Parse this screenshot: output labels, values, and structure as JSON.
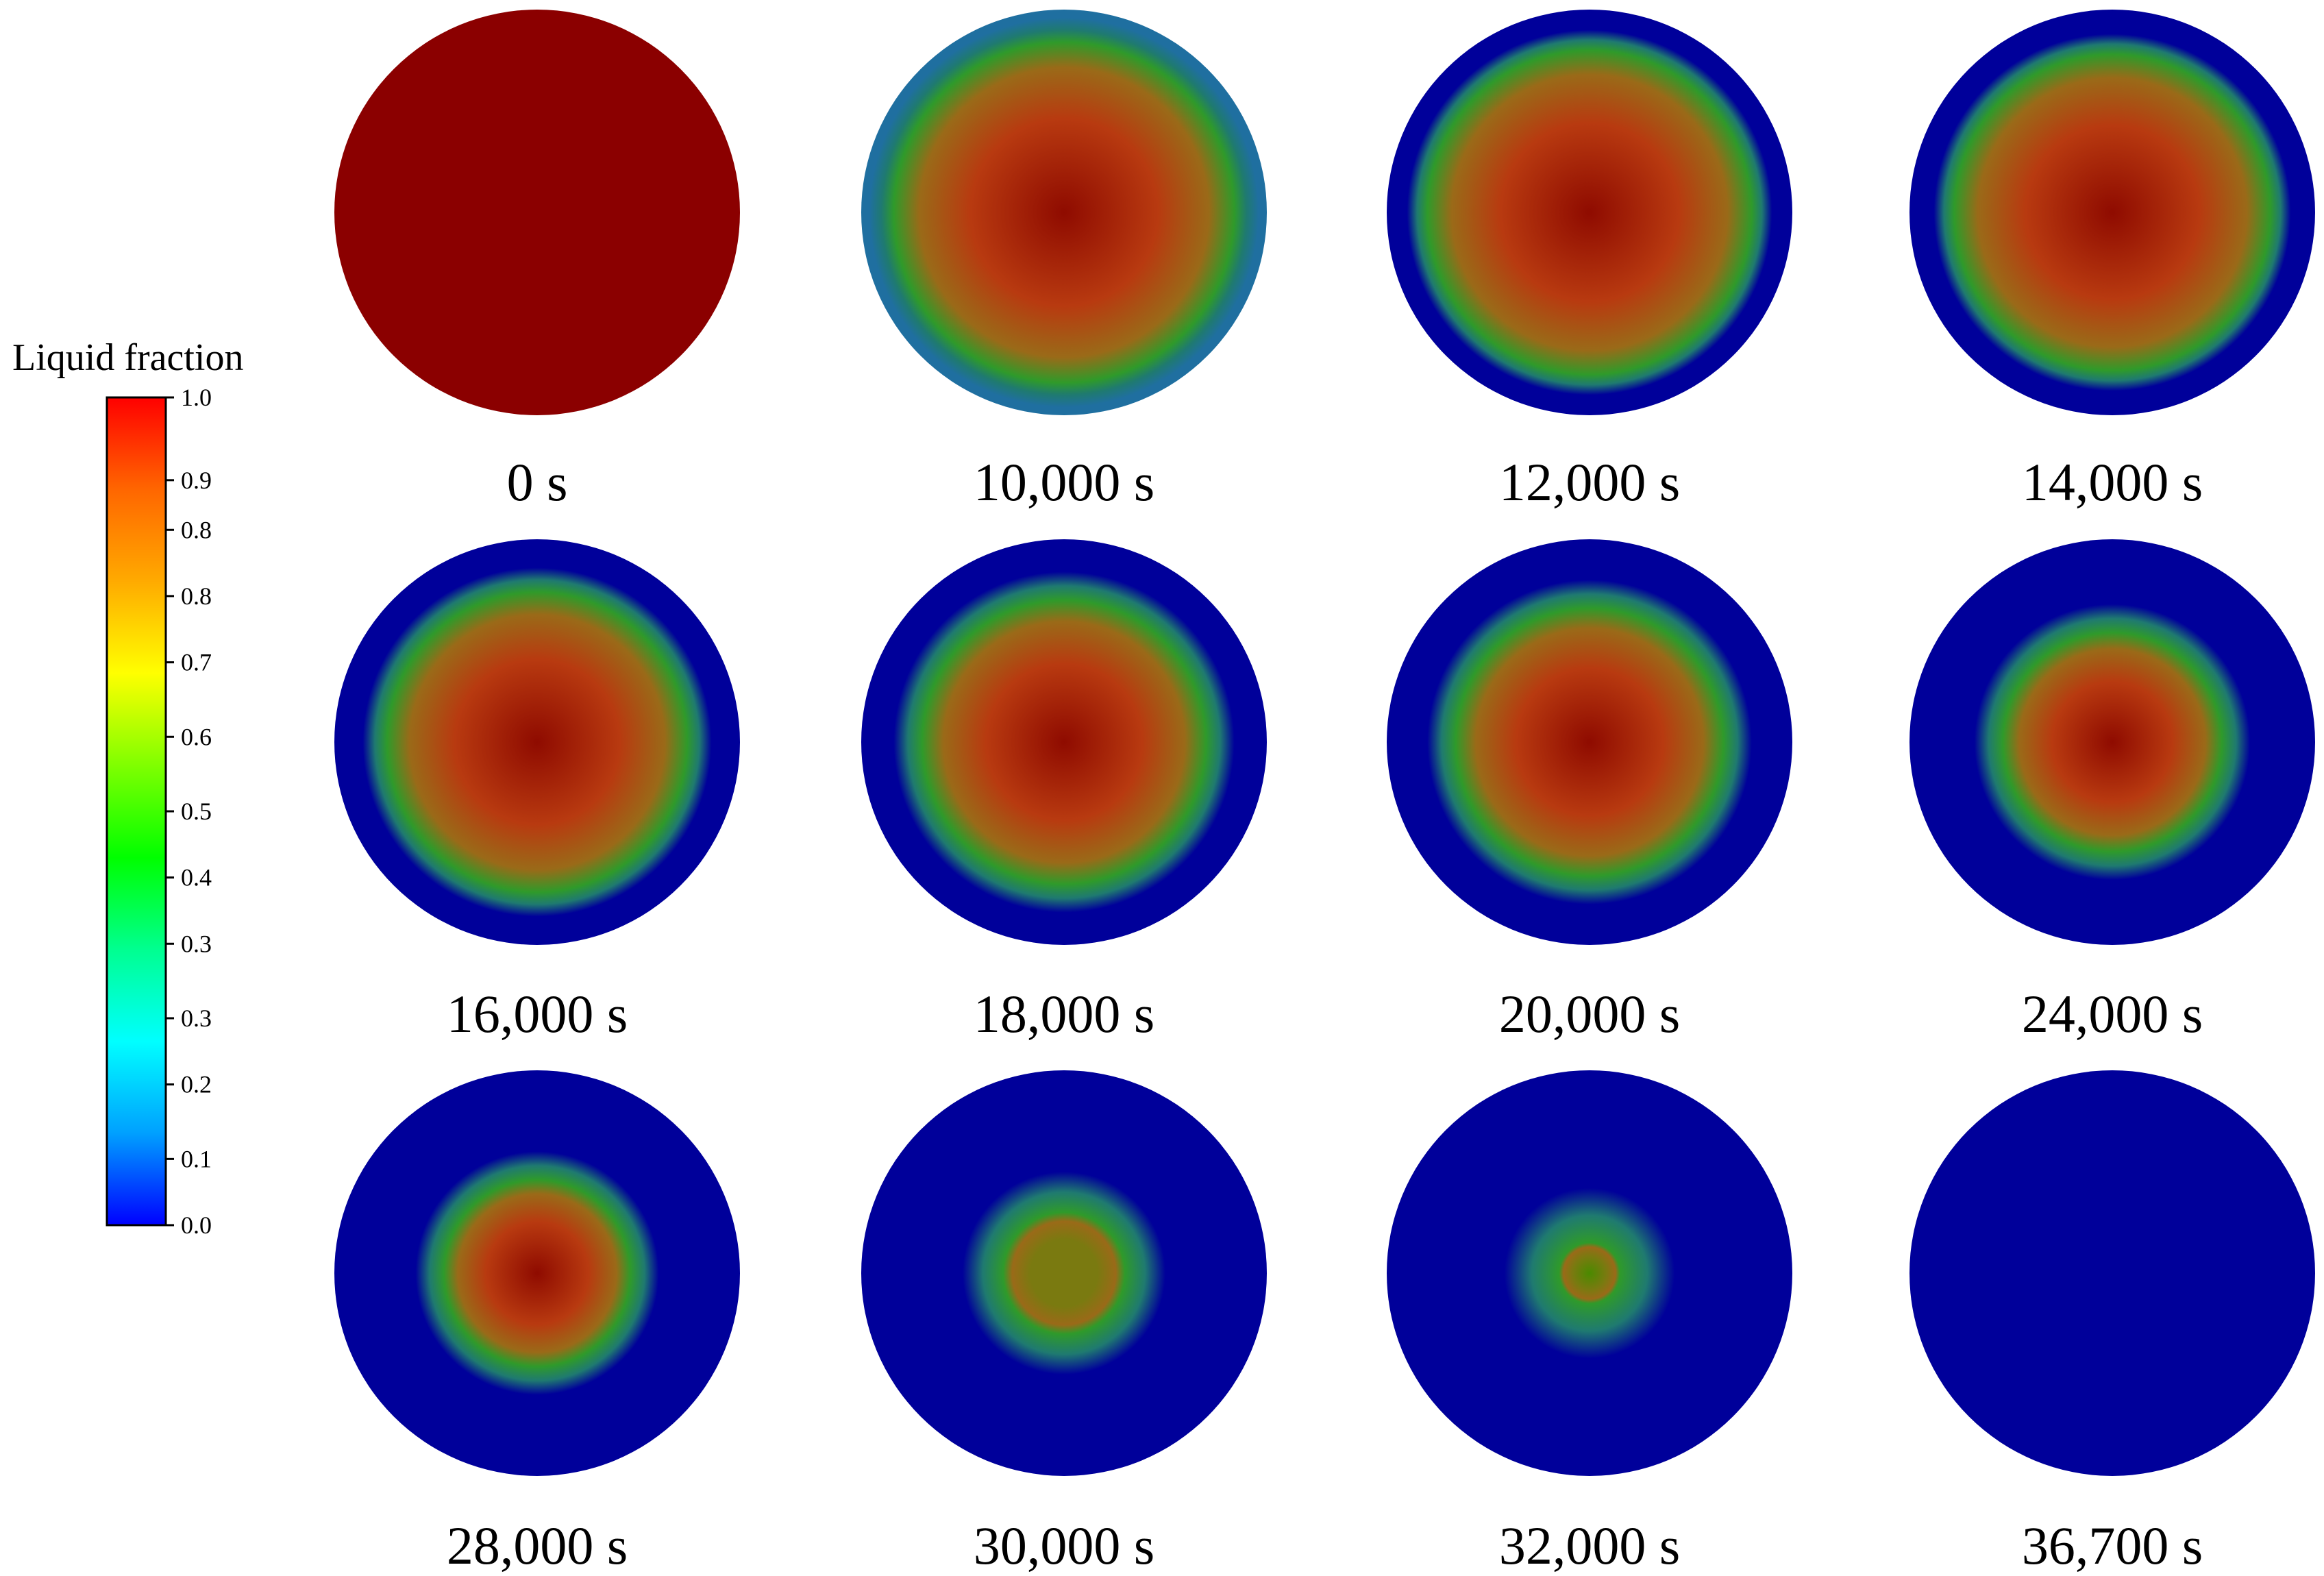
{
  "legend": {
    "title": "Liquid fraction",
    "ticks": [
      {
        "label": "1.0",
        "value": 1.0
      },
      {
        "label": "0.9",
        "value": 0.9
      },
      {
        "label": "0.8",
        "value": 0.84
      },
      {
        "label": "0.8",
        "value": 0.76
      },
      {
        "label": "0.7",
        "value": 0.68
      },
      {
        "label": "0.6",
        "value": 0.59
      },
      {
        "label": "0.5",
        "value": 0.5
      },
      {
        "label": "0.4",
        "value": 0.42
      },
      {
        "label": "0.3",
        "value": 0.34
      },
      {
        "label": "0.3",
        "value": 0.25
      },
      {
        "label": "0.2",
        "value": 0.17
      },
      {
        "label": "0.1",
        "value": 0.08
      },
      {
        "label": "0.0",
        "value": 0.0
      }
    ],
    "colors": [
      "#0000ff",
      "#00a0ff",
      "#00ffff",
      "#00ff90",
      "#00ff00",
      "#80ff00",
      "#ffff00",
      "#ffaa00",
      "#ff6600",
      "#ff0000"
    ]
  },
  "panels": [
    {
      "label": "0 s",
      "core_fraction": 1.0,
      "ring_fraction": 1.0,
      "edge_color": "#8b0000"
    },
    {
      "label": "10,000 s",
      "core_fraction": 0.84,
      "ring_fraction": 0.96,
      "edge_color": "#1f6fa0"
    },
    {
      "label": "12,000 s",
      "core_fraction": 0.8,
      "ring_fraction": 0.9,
      "edge_color": "#00009a"
    },
    {
      "label": "14,000 s",
      "core_fraction": 0.78,
      "ring_fraction": 0.88,
      "edge_color": "#00009a"
    },
    {
      "label": "16,000 s",
      "core_fraction": 0.74,
      "ring_fraction": 0.86,
      "edge_color": "#00009a"
    },
    {
      "label": "18,000 s",
      "core_fraction": 0.7,
      "ring_fraction": 0.84,
      "edge_color": "#00009a"
    },
    {
      "label": "20,000 s",
      "core_fraction": 0.66,
      "ring_fraction": 0.8,
      "edge_color": "#00009a"
    },
    {
      "label": "24,000 s",
      "core_fraction": 0.54,
      "ring_fraction": 0.68,
      "edge_color": "#00009a"
    },
    {
      "label": "28,000 s",
      "core_fraction": 0.46,
      "ring_fraction": 0.6,
      "edge_color": "#00009a"
    },
    {
      "label": "30,000 s",
      "core_fraction": 0.3,
      "ring_fraction": 0.5,
      "edge_color": "#00009a"
    },
    {
      "label": "32,000 s",
      "core_fraction": 0.15,
      "ring_fraction": 0.42,
      "edge_color": "#00009a"
    },
    {
      "label": "36,700 s",
      "core_fraction": 0.0,
      "ring_fraction": 0.0,
      "edge_color": "#00009a"
    }
  ]
}
